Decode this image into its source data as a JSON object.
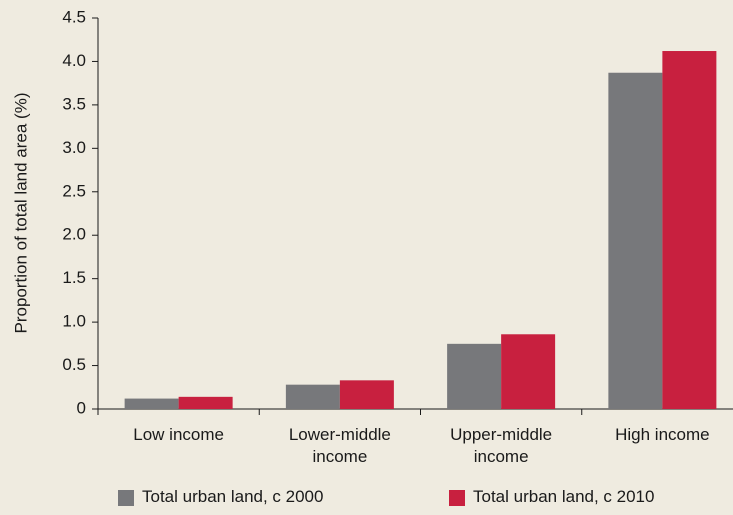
{
  "chart_data": {
    "type": "bar",
    "y_label": "Proportion of total land area (%)",
    "categories": [
      "Low income",
      "Lower-middle income",
      "Upper-middle income",
      "High income"
    ],
    "series": [
      {
        "name": "Total urban land, c 2000",
        "color": "#77787b",
        "values": [
          0.12,
          0.28,
          0.75,
          3.87
        ]
      },
      {
        "name": "Total urban land, c 2010",
        "color": "#c8203f",
        "values": [
          0.14,
          0.33,
          0.86,
          4.12
        ]
      }
    ],
    "ylim": [
      0,
      4.5
    ],
    "yticks": [
      0,
      0.5,
      {
        "value": 1,
        "label": "1.0"
      },
      1.5,
      {
        "value": 2,
        "label": "2.0"
      },
      2.5,
      {
        "value": 3,
        "label": "3.0"
      },
      3.5,
      {
        "value": 4,
        "label": "4.0"
      },
      4.5
    ],
    "grid": false
  }
}
